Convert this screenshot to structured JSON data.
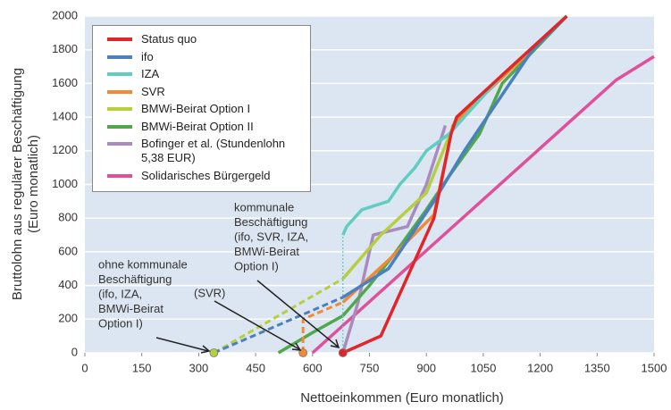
{
  "chart_data": {
    "type": "line",
    "xlabel": "Nettoeinkommen (Euro monatlich)",
    "ylabel": [
      "Bruttolohn aus regulärer Beschäftigung",
      "(Euro monatlich)"
    ],
    "xlim": [
      0,
      1500
    ],
    "xticks": [
      0,
      150,
      300,
      450,
      600,
      750,
      900,
      1050,
      1200,
      1350,
      1500
    ],
    "ylim": [
      0,
      2000
    ],
    "yticks": [
      0,
      200,
      400,
      600,
      800,
      1000,
      1200,
      1400,
      1600,
      1800,
      2000
    ],
    "grid": true,
    "legend": "upper left",
    "series": [
      {
        "name": "Status quo",
        "color": "#e0262b",
        "marker": true,
        "x": [
          680,
          780,
          920,
          965,
          980,
          1100,
          1270
        ],
        "values": [
          0,
          100,
          800,
          1300,
          1400,
          1650,
          2000
        ]
      },
      {
        "name": "ifo",
        "color": "#4a7fc0",
        "lead_segments": 1,
        "lead_style": "dashed",
        "x": [
          340,
          680,
          800,
          920,
          1000,
          1180,
          1270
        ],
        "values": [
          0,
          330,
          500,
          900,
          1200,
          1800,
          2000
        ]
      },
      {
        "name": "IZA",
        "color": "#5fcdc0",
        "lead_segments": 1,
        "lead_style": "dotted",
        "x": [
          680,
          680,
          690,
          730,
          800,
          830,
          870,
          900,
          960,
          1000,
          1100,
          1270
        ],
        "values": [
          0,
          700,
          750,
          850,
          900,
          1000,
          1100,
          1200,
          1300,
          1400,
          1650,
          2000
        ]
      },
      {
        "name": "SVR",
        "color": "#f08a35",
        "marker": true,
        "lead_segments": 2,
        "lead_style": "dashed",
        "x": [
          575,
          575,
          680,
          800,
          920,
          970,
          1000,
          1270
        ],
        "values": [
          0,
          200,
          300,
          550,
          820,
          1350,
          1420,
          2000
        ]
      },
      {
        "name": "BMWi-Beirat Option I",
        "color": "#b5cf3f",
        "marker": true,
        "lead_segments": 1,
        "lead_style": "dashed",
        "x": [
          340,
          680,
          780,
          900,
          980,
          1270
        ],
        "values": [
          0,
          440,
          700,
          950,
          1400,
          2000
        ]
      },
      {
        "name": "BMWi-Beirat Option II",
        "color": "#50a84a",
        "x": [
          510,
          600,
          680,
          750,
          820,
          900,
          960,
          1040,
          1100,
          1270
        ],
        "values": [
          0,
          120,
          220,
          400,
          600,
          850,
          1050,
          1300,
          1600,
          2000
        ]
      },
      {
        "name": "Bofinger et al. (Stundenlohn 5,38 EUR)",
        "color": "#a98cbf",
        "x": [
          680,
          720,
          760,
          850,
          900,
          950
        ],
        "values": [
          0,
          300,
          700,
          750,
          1000,
          1350
        ]
      },
      {
        "name": "Solidarisches Bürgergeld",
        "color": "#e0509a",
        "x": [
          600,
          1400,
          1500
        ],
        "values": [
          0,
          1620,
          1760
        ]
      }
    ],
    "annotations": [
      {
        "lines": [
          "kommunale",
          "Beschäftigung",
          "(ifo, SVR, IZA,",
          "BMWi-Beirat",
          "Option I)"
        ]
      },
      {
        "lines": [
          "ohne kommunale",
          "Beschäftigung",
          "(ifo, IZA,",
          "BMWi-Beirat",
          "Option I)"
        ]
      },
      {
        "lines": [
          "(SVR)"
        ]
      }
    ]
  }
}
